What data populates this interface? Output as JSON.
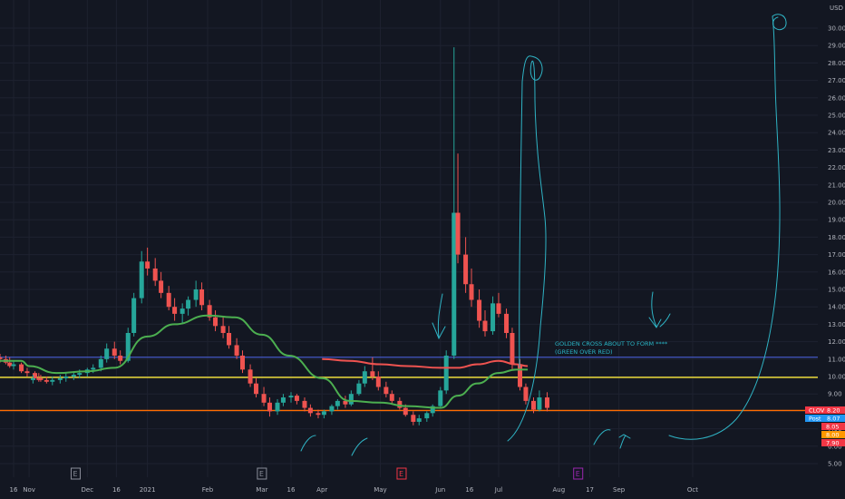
{
  "chart_data": {
    "type": "candlestick",
    "symbol": "CLOV",
    "currency": "USD",
    "x_ticks": [
      "16",
      "Nov",
      "Dec",
      "16",
      "2021",
      "Feb",
      "Mar",
      "16",
      "Apr",
      "May",
      "Jun",
      "16",
      "Jul",
      "Aug",
      "17",
      "Sep",
      "Oct"
    ],
    "y_ticks": [
      "5.00",
      "6.00",
      "7.00",
      "8.00",
      "9.00",
      "10.00",
      "11.00",
      "12.00",
      "13.00",
      "14.00",
      "15.00",
      "16.00",
      "17.00",
      "18.00",
      "19.00",
      "20.00",
      "21.00",
      "22.00",
      "23.00",
      "24.00",
      "25.00",
      "26.00",
      "27.00",
      "28.00",
      "29.00",
      "30.00"
    ],
    "ylim": [
      4.5,
      31.3
    ],
    "horizontal_lines": [
      {
        "value": 11.11,
        "label": "11.11",
        "color": "#3f51b5"
      },
      {
        "value": 9.95,
        "label": "9.95",
        "color": "#ffeb3b"
      },
      {
        "value": 8.05,
        "label": "8.05",
        "color": "#ff6d00"
      }
    ],
    "price_labels": [
      {
        "text": "CLOV",
        "value": "8.20",
        "color": "#f23645"
      },
      {
        "text": "Post",
        "value": "8.07",
        "color": "#2196f3"
      },
      {
        "text": "",
        "value": "8.05",
        "color": "#f23645"
      },
      {
        "text": "",
        "value": "8.00",
        "color": "#ff9800"
      },
      {
        "text": "",
        "value": "7.90",
        "color": "#f23645"
      }
    ],
    "annotation_lines": [
      "GOLDEN CROSS ABOUT TO FORM ****",
      "(GREEN OVER RED)"
    ],
    "event_markers": [
      {
        "date": "Nov 25",
        "label": "E",
        "color": "#8a8e99"
      },
      {
        "date": "Mar 1",
        "label": "E",
        "color": "#8a8e99"
      },
      {
        "date": "May 12",
        "label": "E",
        "color": "#f23645"
      },
      {
        "date": "Aug 11",
        "label": "E",
        "color": "#9c27b0"
      }
    ],
    "ma_green": {
      "name": "",
      "dates": [
        "Oct 9",
        "Oct 20",
        "Nov 1",
        "Nov 15",
        "Dec 1",
        "Dec 15",
        "Jan 1",
        "Jan 15",
        "Feb 1",
        "Feb 15",
        "Mar 1",
        "Mar 15",
        "Apr 1",
        "Apr 15",
        "May 1",
        "May 15",
        "Jun 1",
        "Jun 10",
        "Jun 20",
        "Jul 1",
        "Jul 10",
        "Jul 16"
      ],
      "values": [
        10.9,
        10.9,
        10.6,
        10.2,
        10.3,
        10.5,
        12.3,
        13.0,
        13.5,
        13.4,
        12.4,
        11.2,
        9.9,
        8.6,
        8.5,
        8.3,
        8.2,
        8.9,
        9.6,
        10.2,
        10.4,
        10.4
      ]
    },
    "ma_red": {
      "name": "",
      "dates": [
        "Apr 1",
        "Apr 15",
        "May 1",
        "May 15",
        "Jun 1",
        "Jun 10",
        "Jun 20",
        "Jul 1",
        "Jul 10",
        "Jul 16"
      ],
      "values": [
        11.0,
        10.9,
        10.7,
        10.6,
        10.5,
        10.5,
        10.7,
        10.9,
        10.7,
        10.6
      ]
    },
    "candles": [
      {
        "date": "Oct 9",
        "o": 11.1,
        "h": 11.3,
        "l": 10.8,
        "c": 11.0
      },
      {
        "date": "Oct 12",
        "o": 11.0,
        "h": 11.2,
        "l": 10.7,
        "c": 10.8
      },
      {
        "date": "Oct 14",
        "o": 10.8,
        "h": 11.1,
        "l": 10.5,
        "c": 10.6
      },
      {
        "date": "Oct 16",
        "o": 10.6,
        "h": 10.9,
        "l": 10.4,
        "c": 10.7
      },
      {
        "date": "Oct 20",
        "o": 10.7,
        "h": 10.8,
        "l": 10.2,
        "c": 10.3
      },
      {
        "date": "Oct 23",
        "o": 10.3,
        "h": 10.5,
        "l": 10.0,
        "c": 10.2
      },
      {
        "date": "Oct 27",
        "o": 10.2,
        "h": 10.3,
        "l": 9.8,
        "c": 9.9
      },
      {
        "date": "Oct 30",
        "o": 9.9,
        "h": 10.1,
        "l": 9.7,
        "c": 9.8
      },
      {
        "date": "Nov 3",
        "o": 9.8,
        "h": 10.1,
        "l": 9.6,
        "c": 9.9
      },
      {
        "date": "Nov 6",
        "o": 9.9,
        "h": 10.2,
        "l": 9.7,
        "c": 9.8
      },
      {
        "date": "Nov 10",
        "o": 9.8,
        "h": 10.0,
        "l": 9.6,
        "c": 9.7
      },
      {
        "date": "Nov 13",
        "o": 9.7,
        "h": 10.0,
        "l": 9.5,
        "c": 9.8
      },
      {
        "date": "Nov 17",
        "o": 9.8,
        "h": 10.1,
        "l": 9.6,
        "c": 9.9
      },
      {
        "date": "Nov 20",
        "o": 9.9,
        "h": 10.2,
        "l": 9.7,
        "c": 10.0
      },
      {
        "date": "Nov 24",
        "o": 10.0,
        "h": 10.3,
        "l": 9.8,
        "c": 10.1
      },
      {
        "date": "Nov 27",
        "o": 10.1,
        "h": 10.4,
        "l": 9.9,
        "c": 10.2
      },
      {
        "date": "Dec 1",
        "o": 10.2,
        "h": 10.5,
        "l": 10.0,
        "c": 10.4
      },
      {
        "date": "Dec 4",
        "o": 10.4,
        "h": 10.7,
        "l": 10.2,
        "c": 10.5
      },
      {
        "date": "Dec 8",
        "o": 10.5,
        "h": 11.2,
        "l": 10.3,
        "c": 11.0
      },
      {
        "date": "Dec 11",
        "o": 11.0,
        "h": 11.9,
        "l": 10.8,
        "c": 11.6
      },
      {
        "date": "Dec 15",
        "o": 11.6,
        "h": 12.0,
        "l": 11.0,
        "c": 11.2
      },
      {
        "date": "Dec 18",
        "o": 11.2,
        "h": 11.5,
        "l": 10.7,
        "c": 10.9
      },
      {
        "date": "Dec 22",
        "o": 10.9,
        "h": 12.8,
        "l": 10.8,
        "c": 12.5
      },
      {
        "date": "Dec 25",
        "o": 12.5,
        "h": 14.8,
        "l": 12.3,
        "c": 14.5
      },
      {
        "date": "Dec 29",
        "o": 14.5,
        "h": 17.2,
        "l": 14.2,
        "c": 16.6
      },
      {
        "date": "Jan 1",
        "o": 16.6,
        "h": 17.4,
        "l": 15.8,
        "c": 16.2
      },
      {
        "date": "Jan 5",
        "o": 16.2,
        "h": 16.8,
        "l": 15.2,
        "c": 15.5
      },
      {
        "date": "Jan 8",
        "o": 15.5,
        "h": 16.0,
        "l": 14.5,
        "c": 14.8
      },
      {
        "date": "Jan 12",
        "o": 14.8,
        "h": 15.2,
        "l": 13.8,
        "c": 14.0
      },
      {
        "date": "Jan 15",
        "o": 14.0,
        "h": 14.5,
        "l": 13.2,
        "c": 13.6
      },
      {
        "date": "Jan 19",
        "o": 13.6,
        "h": 14.2,
        "l": 13.0,
        "c": 13.9
      },
      {
        "date": "Jan 22",
        "o": 13.9,
        "h": 14.6,
        "l": 13.5,
        "c": 14.4
      },
      {
        "date": "Jan 26",
        "o": 14.4,
        "h": 15.5,
        "l": 14.0,
        "c": 15.0
      },
      {
        "date": "Jan 29",
        "o": 15.0,
        "h": 15.4,
        "l": 13.8,
        "c": 14.1
      },
      {
        "date": "Feb 2",
        "o": 14.1,
        "h": 14.4,
        "l": 13.2,
        "c": 13.4
      },
      {
        "date": "Feb 5",
        "o": 13.4,
        "h": 13.8,
        "l": 12.6,
        "c": 12.9
      },
      {
        "date": "Feb 9",
        "o": 12.9,
        "h": 13.4,
        "l": 12.2,
        "c": 12.5
      },
      {
        "date": "Feb 12",
        "o": 12.5,
        "h": 12.9,
        "l": 11.6,
        "c": 11.8
      },
      {
        "date": "Feb 16",
        "o": 11.8,
        "h": 12.2,
        "l": 11.0,
        "c": 11.2
      },
      {
        "date": "Feb 19",
        "o": 11.2,
        "h": 11.5,
        "l": 10.2,
        "c": 10.4
      },
      {
        "date": "Feb 23",
        "o": 10.4,
        "h": 10.7,
        "l": 9.4,
        "c": 9.6
      },
      {
        "date": "Feb 26",
        "o": 9.6,
        "h": 9.9,
        "l": 8.8,
        "c": 9.0
      },
      {
        "date": "Mar 2",
        "o": 9.0,
        "h": 9.4,
        "l": 8.3,
        "c": 8.5
      },
      {
        "date": "Mar 5",
        "o": 8.5,
        "h": 8.8,
        "l": 7.7,
        "c": 8.0
      },
      {
        "date": "Mar 9",
        "o": 8.0,
        "h": 8.7,
        "l": 7.8,
        "c": 8.5
      },
      {
        "date": "Mar 12",
        "o": 8.5,
        "h": 9.0,
        "l": 8.3,
        "c": 8.8
      },
      {
        "date": "Mar 16",
        "o": 8.8,
        "h": 9.1,
        "l": 8.5,
        "c": 8.9
      },
      {
        "date": "Mar 19",
        "o": 8.9,
        "h": 9.0,
        "l": 8.4,
        "c": 8.6
      },
      {
        "date": "Mar 23",
        "o": 8.6,
        "h": 8.8,
        "l": 8.0,
        "c": 8.2
      },
      {
        "date": "Mar 26",
        "o": 8.2,
        "h": 8.4,
        "l": 7.7,
        "c": 7.9
      },
      {
        "date": "Mar 30",
        "o": 7.9,
        "h": 8.1,
        "l": 7.6,
        "c": 7.8
      },
      {
        "date": "Apr 2",
        "o": 7.8,
        "h": 8.1,
        "l": 7.6,
        "c": 8.0
      },
      {
        "date": "Apr 6",
        "o": 8.0,
        "h": 8.4,
        "l": 7.8,
        "c": 8.3
      },
      {
        "date": "Apr 9",
        "o": 8.3,
        "h": 8.7,
        "l": 8.1,
        "c": 8.6
      },
      {
        "date": "Apr 13",
        "o": 8.6,
        "h": 8.9,
        "l": 8.2,
        "c": 8.4
      },
      {
        "date": "Apr 16",
        "o": 8.4,
        "h": 9.2,
        "l": 8.3,
        "c": 9.0
      },
      {
        "date": "Apr 20",
        "o": 9.0,
        "h": 9.8,
        "l": 8.9,
        "c": 9.6
      },
      {
        "date": "Apr 23",
        "o": 9.6,
        "h": 10.6,
        "l": 9.4,
        "c": 10.3
      },
      {
        "date": "Apr 27",
        "o": 10.3,
        "h": 11.1,
        "l": 9.8,
        "c": 10.0
      },
      {
        "date": "Apr 30",
        "o": 10.0,
        "h": 10.3,
        "l": 9.2,
        "c": 9.4
      },
      {
        "date": "May 4",
        "o": 9.4,
        "h": 9.7,
        "l": 8.8,
        "c": 9.0
      },
      {
        "date": "May 7",
        "o": 9.0,
        "h": 9.2,
        "l": 8.4,
        "c": 8.6
      },
      {
        "date": "May 11",
        "o": 8.6,
        "h": 8.8,
        "l": 8.1,
        "c": 8.2
      },
      {
        "date": "May 14",
        "o": 8.2,
        "h": 8.4,
        "l": 7.7,
        "c": 7.8
      },
      {
        "date": "May 18",
        "o": 7.8,
        "h": 8.0,
        "l": 7.2,
        "c": 7.4
      },
      {
        "date": "May 21",
        "o": 7.4,
        "h": 7.8,
        "l": 7.2,
        "c": 7.6
      },
      {
        "date": "May 25",
        "o": 7.6,
        "h": 8.0,
        "l": 7.4,
        "c": 7.9
      },
      {
        "date": "May 28",
        "o": 7.9,
        "h": 8.4,
        "l": 7.7,
        "c": 8.3
      },
      {
        "date": "Jun 1",
        "o": 8.3,
        "h": 9.4,
        "l": 8.2,
        "c": 9.2
      },
      {
        "date": "Jun 4",
        "o": 9.2,
        "h": 11.5,
        "l": 9.0,
        "c": 11.2
      },
      {
        "date": "Jun 8",
        "o": 11.2,
        "h": 28.9,
        "l": 11.0,
        "c": 19.4
      },
      {
        "date": "Jun 10",
        "o": 19.4,
        "h": 22.8,
        "l": 16.5,
        "c": 17.0
      },
      {
        "date": "Jun 14",
        "o": 17.0,
        "h": 18.0,
        "l": 14.8,
        "c": 15.3
      },
      {
        "date": "Jun 17",
        "o": 15.3,
        "h": 16.2,
        "l": 14.0,
        "c": 14.4
      },
      {
        "date": "Jun 21",
        "o": 14.4,
        "h": 15.0,
        "l": 12.8,
        "c": 13.2
      },
      {
        "date": "Jun 24",
        "o": 13.2,
        "h": 13.8,
        "l": 12.3,
        "c": 12.6
      },
      {
        "date": "Jun 28",
        "o": 12.6,
        "h": 14.6,
        "l": 12.4,
        "c": 14.2
      },
      {
        "date": "Jul 1",
        "o": 14.2,
        "h": 14.8,
        "l": 13.4,
        "c": 13.6
      },
      {
        "date": "Jul 5",
        "o": 13.6,
        "h": 13.9,
        "l": 12.2,
        "c": 12.5
      },
      {
        "date": "Jul 8",
        "o": 12.5,
        "h": 12.8,
        "l": 10.4,
        "c": 10.7
      },
      {
        "date": "Jul 12",
        "o": 10.7,
        "h": 11.0,
        "l": 9.2,
        "c": 9.4
      },
      {
        "date": "Jul 15",
        "o": 9.4,
        "h": 9.6,
        "l": 8.4,
        "c": 8.6
      },
      {
        "date": "Jul 19",
        "o": 8.6,
        "h": 8.8,
        "l": 7.9,
        "c": 8.1
      },
      {
        "date": "Jul 22",
        "o": 8.1,
        "h": 9.2,
        "l": 8.0,
        "c": 8.8
      },
      {
        "date": "Jul 26",
        "o": 8.8,
        "h": 9.1,
        "l": 8.0,
        "c": 8.2
      }
    ],
    "drawings": [
      "pen-swing-up-circle",
      "pen-loop-peak",
      "pen-arrows",
      "pen-smiles"
    ]
  }
}
